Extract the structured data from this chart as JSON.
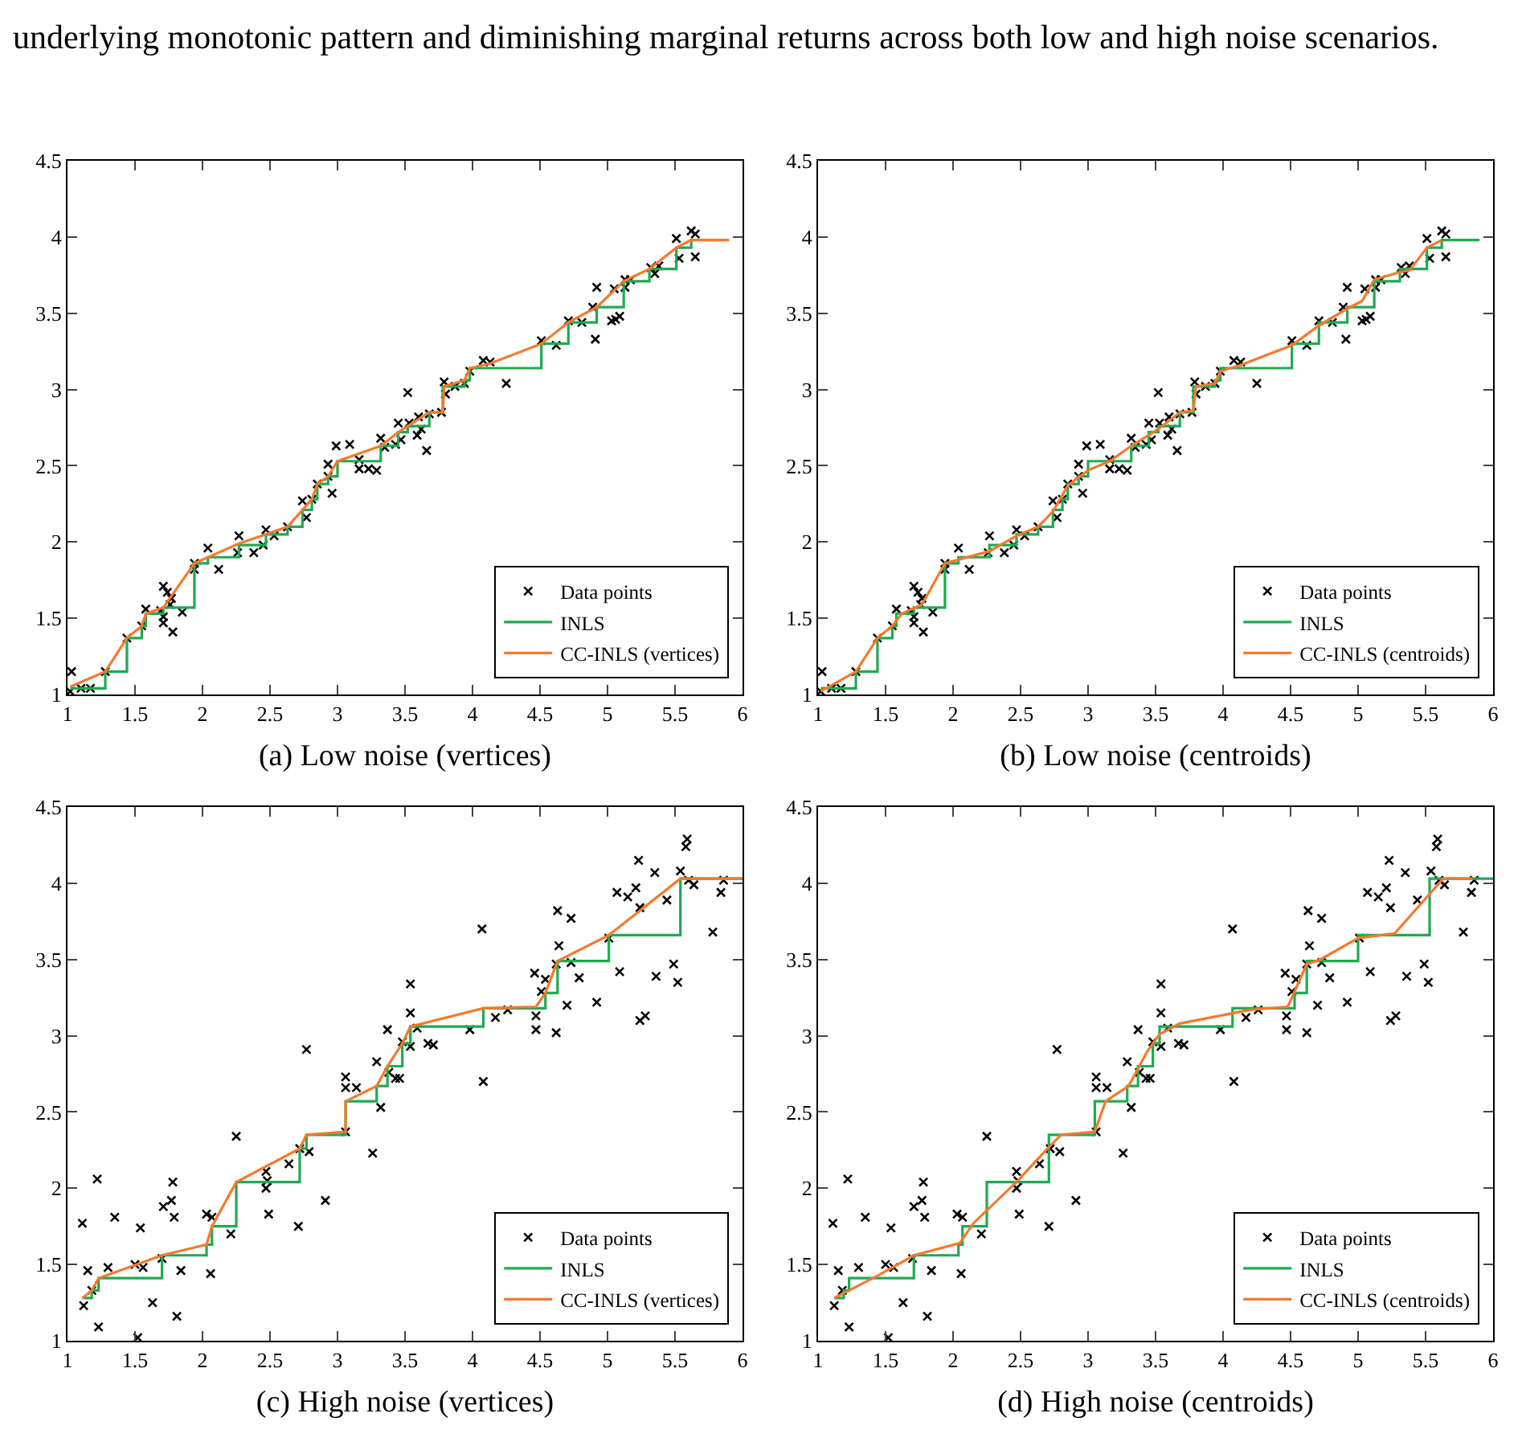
{
  "chart_data": [
    {
      "type": "scatter",
      "title": "(a) Low noise (vertices)",
      "annotations": [
        "underlying monotonic pattern and diminishing marginal returns across both low and high noise scenarios."
      ],
      "xlim": [
        1,
        6
      ],
      "ylim": [
        1,
        4.5
      ],
      "xticks": [
        1,
        1.5,
        2,
        2.5,
        3,
        3.5,
        4,
        4.5,
        5,
        5.5,
        6
      ],
      "yticks": [
        1,
        1.5,
        2,
        2.5,
        3,
        3.5,
        4,
        4.5
      ],
      "grid": false,
      "legend": "bottom right",
      "series": [
        {
          "type": "scatter",
          "name": "Data points",
          "color": "#000000",
          "marker": "cross",
          "x": [
            1.02,
            1.03,
            1.1,
            1.17,
            1.28,
            1.44,
            1.55,
            1.58,
            1.69,
            1.71,
            1.74,
            1.77,
            1.71,
            1.71,
            1.76,
            1.78,
            1.85,
            1.94,
            1.94,
            2.04,
            2.12,
            2.26,
            2.27,
            2.38,
            2.45,
            2.47,
            2.53,
            2.63,
            2.74,
            2.77,
            2.81,
            2.85,
            2.93,
            2.93,
            2.96,
            2.99,
            3.09,
            3.16,
            3.16,
            3.23,
            3.29,
            3.32,
            3.35,
            3.43,
            3.45,
            3.47,
            3.52,
            3.53,
            3.59,
            3.6,
            3.62,
            3.66,
            3.68,
            3.77,
            3.79,
            3.8,
            3.87,
            3.94,
            3.98,
            4.08,
            4.13,
            4.25,
            4.51,
            4.62,
            4.71,
            4.81,
            4.89,
            4.91,
            4.92,
            5.03,
            5.06,
            5.09,
            5.05,
            5.13,
            5.13,
            5.17,
            5.32,
            5.35,
            5.38,
            5.51,
            5.53,
            5.62,
            5.65,
            5.65
          ],
          "values": [
            1.02,
            1.15,
            1.04,
            1.04,
            1.15,
            1.37,
            1.45,
            1.56,
            1.55,
            1.71,
            1.67,
            1.63,
            1.51,
            1.47,
            1.59,
            1.41,
            1.54,
            1.86,
            1.82,
            1.96,
            1.82,
            1.93,
            2.04,
            1.93,
            1.98,
            2.08,
            2.04,
            2.1,
            2.27,
            2.16,
            2.28,
            2.38,
            2.43,
            2.51,
            2.32,
            2.63,
            2.64,
            2.54,
            2.48,
            2.48,
            2.47,
            2.68,
            2.62,
            2.64,
            2.78,
            2.67,
            2.98,
            2.78,
            2.7,
            2.82,
            2.74,
            2.6,
            2.84,
            2.85,
            3.05,
            2.97,
            3.02,
            3.04,
            3.12,
            3.19,
            3.18,
            3.04,
            3.32,
            3.29,
            3.45,
            3.44,
            3.54,
            3.33,
            3.67,
            3.45,
            3.46,
            3.48,
            3.66,
            3.67,
            3.72,
            3.72,
            3.8,
            3.76,
            3.81,
            3.99,
            3.86,
            4.04,
            4.02,
            3.87
          ]
        },
        {
          "type": "step",
          "name": "INLS",
          "color": "#1faa52",
          "x": [
            1.02,
            1.28,
            1.44,
            1.55,
            1.58,
            1.71,
            1.94,
            2.04,
            2.27,
            2.47,
            2.63,
            2.74,
            2.81,
            2.85,
            2.93,
            3.0,
            3.32,
            3.45,
            3.52,
            3.68,
            3.78,
            3.94,
            3.98,
            4.51,
            4.71,
            4.92,
            5.12,
            5.31,
            5.51,
            5.62,
            5.9
          ],
          "values": [
            1.04,
            1.15,
            1.37,
            1.45,
            1.53,
            1.57,
            1.86,
            1.9,
            1.98,
            2.05,
            2.1,
            2.21,
            2.28,
            2.38,
            2.43,
            2.53,
            2.63,
            2.72,
            2.76,
            2.85,
            3.02,
            3.06,
            3.14,
            3.3,
            3.44,
            3.54,
            3.71,
            3.79,
            3.93,
            3.98,
            3.98
          ]
        },
        {
          "type": "line",
          "name": "CC-INLS (vertices)",
          "color": "#f5792e",
          "x": [
            1.02,
            1.28,
            1.44,
            1.55,
            1.58,
            1.71,
            1.94,
            2.27,
            2.47,
            2.63,
            2.74,
            2.81,
            2.85,
            2.93,
            3.0,
            3.32,
            3.45,
            3.52,
            3.68,
            3.78,
            3.79,
            3.94,
            3.98,
            4.13,
            4.51,
            4.71,
            4.92,
            5.12,
            5.31,
            5.51,
            5.62,
            5.9
          ],
          "values": [
            1.05,
            1.15,
            1.37,
            1.45,
            1.53,
            1.57,
            1.86,
            1.99,
            2.05,
            2.1,
            2.21,
            2.28,
            2.38,
            2.43,
            2.53,
            2.63,
            2.72,
            2.76,
            2.85,
            2.85,
            3.02,
            3.06,
            3.14,
            3.17,
            3.3,
            3.44,
            3.54,
            3.71,
            3.79,
            3.93,
            3.98,
            3.98
          ]
        }
      ]
    },
    {
      "type": "scatter",
      "title": "(b) Low noise (centroids)",
      "xlim": [
        1,
        6
      ],
      "ylim": [
        1,
        4.5
      ],
      "xticks": [
        1,
        1.5,
        2,
        2.5,
        3,
        3.5,
        4,
        4.5,
        5,
        5.5,
        6
      ],
      "yticks": [
        1,
        1.5,
        2,
        2.5,
        3,
        3.5,
        4,
        4.5
      ],
      "grid": false,
      "legend": "bottom right",
      "series": [
        {
          "type": "scatter",
          "name": "Data points",
          "color": "#000000",
          "marker": "cross",
          "x": [
            1.02,
            1.03,
            1.1,
            1.17,
            1.28,
            1.44,
            1.55,
            1.58,
            1.69,
            1.71,
            1.74,
            1.77,
            1.71,
            1.71,
            1.76,
            1.78,
            1.85,
            1.94,
            1.94,
            2.04,
            2.12,
            2.26,
            2.27,
            2.38,
            2.45,
            2.47,
            2.53,
            2.63,
            2.74,
            2.77,
            2.81,
            2.85,
            2.93,
            2.93,
            2.96,
            2.99,
            3.09,
            3.16,
            3.16,
            3.23,
            3.29,
            3.32,
            3.35,
            3.43,
            3.45,
            3.47,
            3.52,
            3.53,
            3.59,
            3.6,
            3.62,
            3.66,
            3.68,
            3.77,
            3.79,
            3.8,
            3.87,
            3.94,
            3.98,
            4.08,
            4.13,
            4.25,
            4.51,
            4.62,
            4.71,
            4.81,
            4.89,
            4.91,
            4.92,
            5.03,
            5.06,
            5.09,
            5.05,
            5.13,
            5.13,
            5.17,
            5.32,
            5.35,
            5.38,
            5.51,
            5.53,
            5.62,
            5.65,
            5.65
          ],
          "values": [
            1.02,
            1.15,
            1.04,
            1.04,
            1.15,
            1.37,
            1.45,
            1.56,
            1.55,
            1.71,
            1.67,
            1.63,
            1.51,
            1.47,
            1.59,
            1.41,
            1.54,
            1.86,
            1.82,
            1.96,
            1.82,
            1.93,
            2.04,
            1.93,
            1.98,
            2.08,
            2.04,
            2.1,
            2.27,
            2.16,
            2.28,
            2.38,
            2.43,
            2.51,
            2.32,
            2.63,
            2.64,
            2.54,
            2.48,
            2.48,
            2.47,
            2.68,
            2.62,
            2.64,
            2.78,
            2.67,
            2.98,
            2.78,
            2.7,
            2.82,
            2.74,
            2.6,
            2.84,
            2.85,
            3.05,
            2.97,
            3.02,
            3.04,
            3.12,
            3.19,
            3.18,
            3.04,
            3.32,
            3.29,
            3.45,
            3.44,
            3.54,
            3.33,
            3.67,
            3.45,
            3.46,
            3.48,
            3.66,
            3.67,
            3.72,
            3.72,
            3.8,
            3.76,
            3.81,
            3.99,
            3.86,
            4.04,
            4.02,
            3.87
          ]
        },
        {
          "type": "step",
          "name": "INLS",
          "color": "#1faa52",
          "x": [
            1.02,
            1.28,
            1.44,
            1.55,
            1.58,
            1.71,
            1.94,
            2.04,
            2.27,
            2.47,
            2.63,
            2.74,
            2.81,
            2.85,
            2.93,
            3.0,
            3.32,
            3.45,
            3.52,
            3.68,
            3.78,
            3.94,
            3.98,
            4.51,
            4.71,
            4.92,
            5.12,
            5.31,
            5.51,
            5.62,
            5.9
          ],
          "values": [
            1.04,
            1.15,
            1.37,
            1.45,
            1.53,
            1.57,
            1.86,
            1.9,
            1.98,
            2.05,
            2.1,
            2.21,
            2.28,
            2.38,
            2.43,
            2.53,
            2.63,
            2.72,
            2.76,
            2.85,
            3.02,
            3.06,
            3.14,
            3.3,
            3.44,
            3.54,
            3.71,
            3.79,
            3.93,
            3.98,
            3.98
          ]
        },
        {
          "type": "line",
          "name": "CC-INLS (centroids)",
          "color": "#f5792e",
          "x": [
            1.02,
            1.28,
            1.44,
            1.55,
            1.62,
            1.77,
            1.94,
            2.27,
            2.47,
            2.63,
            2.74,
            2.85,
            3.0,
            3.16,
            3.32,
            3.52,
            3.68,
            3.78,
            3.8,
            3.94,
            3.98,
            4.13,
            4.51,
            4.71,
            4.92,
            5.03,
            5.12,
            5.31,
            5.38,
            5.51,
            5.62
          ],
          "values": [
            1.02,
            1.15,
            1.37,
            1.45,
            1.53,
            1.59,
            1.86,
            1.94,
            2.04,
            2.1,
            2.2,
            2.37,
            2.47,
            2.53,
            2.63,
            2.74,
            2.85,
            2.86,
            3.02,
            3.04,
            3.12,
            3.16,
            3.29,
            3.42,
            3.53,
            3.58,
            3.72,
            3.77,
            3.78,
            3.93,
            3.98
          ]
        }
      ]
    },
    {
      "type": "scatter",
      "title": "(c) High noise (vertices)",
      "xlim": [
        1,
        6
      ],
      "ylim": [
        1,
        4.5
      ],
      "xticks": [
        1,
        1.5,
        2,
        2.5,
        3,
        3.5,
        4,
        4.5,
        5,
        5.5,
        6
      ],
      "yticks": [
        1,
        1.5,
        2,
        2.5,
        3,
        3.5,
        4,
        4.5
      ],
      "grid": false,
      "legend": "bottom right",
      "series": [
        {
          "type": "scatter",
          "name": "Data points",
          "color": "#000000",
          "marker": "cross",
          "x": [
            1.11,
            1.15,
            1.12,
            1.18,
            1.22,
            1.23,
            1.3,
            1.35,
            1.5,
            1.52,
            1.54,
            1.56,
            1.63,
            1.71,
            1.7,
            1.77,
            1.78,
            1.79,
            1.81,
            1.84,
            2.03,
            2.07,
            2.06,
            2.21,
            2.25,
            2.47,
            2.47,
            2.48,
            2.49,
            2.64,
            2.71,
            2.72,
            2.77,
            2.79,
            2.91,
            3.06,
            3.06,
            3.06,
            3.14,
            3.26,
            3.29,
            3.32,
            3.37,
            3.38,
            3.43,
            3.46,
            3.48,
            3.54,
            3.54,
            3.54,
            3.59,
            3.67,
            3.71,
            3.98,
            4.07,
            4.08,
            4.17,
            4.26,
            4.46,
            4.47,
            4.47,
            4.51,
            4.54,
            4.62,
            4.62,
            4.63,
            4.64,
            4.7,
            4.73,
            4.73,
            4.79,
            4.92,
            5.01,
            5.07,
            5.09,
            5.15,
            5.21,
            5.23,
            5.24,
            5.24,
            5.28,
            5.35,
            5.36,
            5.44,
            5.49,
            5.52,
            5.54,
            5.58,
            5.59,
            5.6,
            5.64,
            5.78,
            5.84,
            5.86
          ],
          "values": [
            1.77,
            1.46,
            1.23,
            1.33,
            2.06,
            1.09,
            1.48,
            1.81,
            1.5,
            1.02,
            1.74,
            1.48,
            1.25,
            1.88,
            1.54,
            1.92,
            2.04,
            1.81,
            1.16,
            1.46,
            1.83,
            1.81,
            1.44,
            1.7,
            2.34,
            2.0,
            2.11,
            2.05,
            1.83,
            2.16,
            1.75,
            2.26,
            2.91,
            2.24,
            1.92,
            2.37,
            2.73,
            2.66,
            2.66,
            2.23,
            2.83,
            2.53,
            3.04,
            2.76,
            2.72,
            2.72,
            2.96,
            3.15,
            2.93,
            3.34,
            3.05,
            2.95,
            2.94,
            3.04,
            3.7,
            2.7,
            3.12,
            3.17,
            3.41,
            3.13,
            3.04,
            3.29,
            3.37,
            3.47,
            3.02,
            3.82,
            3.59,
            3.2,
            3.77,
            3.48,
            3.38,
            3.22,
            3.64,
            3.94,
            3.42,
            3.91,
            3.97,
            4.15,
            3.84,
            3.1,
            3.13,
            4.07,
            3.39,
            3.89,
            3.47,
            3.35,
            4.08,
            4.24,
            4.29,
            4.02,
            3.99,
            3.68,
            3.94,
            4.02
          ]
        },
        {
          "type": "step",
          "name": "INLS",
          "color": "#1faa52",
          "x": [
            1.11,
            1.18,
            1.23,
            1.7,
            2.03,
            2.07,
            2.25,
            2.72,
            2.77,
            3.06,
            3.29,
            3.37,
            3.48,
            3.54,
            4.08,
            4.54,
            4.63,
            5.01,
            5.54,
            6.0
          ],
          "values": [
            1.28,
            1.33,
            1.41,
            1.56,
            1.63,
            1.75,
            2.04,
            2.26,
            2.35,
            2.57,
            2.67,
            2.8,
            2.95,
            3.06,
            3.18,
            3.28,
            3.49,
            3.66,
            4.03,
            4.03
          ]
        },
        {
          "type": "line",
          "name": "CC-INLS (vertices)",
          "color": "#f5792e",
          "x": [
            1.11,
            1.18,
            1.23,
            1.7,
            2.03,
            2.07,
            2.25,
            2.72,
            2.77,
            3.06,
            3.06,
            3.29,
            3.37,
            3.48,
            3.54,
            4.08,
            4.47,
            4.54,
            4.63,
            5.01,
            5.54,
            6.0
          ],
          "values": [
            1.28,
            1.33,
            1.41,
            1.56,
            1.63,
            1.75,
            2.04,
            2.26,
            2.35,
            2.37,
            2.57,
            2.67,
            2.8,
            2.95,
            3.06,
            3.18,
            3.19,
            3.28,
            3.49,
            3.66,
            4.03,
            4.03
          ]
        }
      ]
    },
    {
      "type": "scatter",
      "title": "(d) High noise (centroids)",
      "xlim": [
        1,
        6
      ],
      "ylim": [
        1,
        4.5
      ],
      "xticks": [
        1,
        1.5,
        2,
        2.5,
        3,
        3.5,
        4,
        4.5,
        5,
        5.5,
        6
      ],
      "yticks": [
        1,
        1.5,
        2,
        2.5,
        3,
        3.5,
        4,
        4.5
      ],
      "grid": false,
      "legend": "bottom right",
      "series": [
        {
          "type": "scatter",
          "name": "Data points",
          "color": "#000000",
          "marker": "cross",
          "x": [
            1.11,
            1.15,
            1.12,
            1.18,
            1.22,
            1.23,
            1.3,
            1.35,
            1.5,
            1.52,
            1.54,
            1.56,
            1.63,
            1.71,
            1.7,
            1.77,
            1.78,
            1.79,
            1.81,
            1.84,
            2.03,
            2.07,
            2.06,
            2.21,
            2.25,
            2.47,
            2.47,
            2.48,
            2.49,
            2.64,
            2.71,
            2.72,
            2.77,
            2.79,
            2.91,
            3.06,
            3.06,
            3.06,
            3.14,
            3.26,
            3.29,
            3.32,
            3.37,
            3.38,
            3.43,
            3.46,
            3.48,
            3.54,
            3.54,
            3.54,
            3.59,
            3.67,
            3.71,
            3.98,
            4.07,
            4.08,
            4.17,
            4.26,
            4.46,
            4.47,
            4.47,
            4.51,
            4.54,
            4.62,
            4.62,
            4.63,
            4.64,
            4.7,
            4.73,
            4.73,
            4.79,
            4.92,
            5.01,
            5.07,
            5.09,
            5.15,
            5.21,
            5.23,
            5.24,
            5.24,
            5.28,
            5.35,
            5.36,
            5.44,
            5.49,
            5.52,
            5.54,
            5.58,
            5.59,
            5.6,
            5.64,
            5.78,
            5.84,
            5.86
          ],
          "values": [
            1.77,
            1.46,
            1.23,
            1.33,
            2.06,
            1.09,
            1.48,
            1.81,
            1.5,
            1.02,
            1.74,
            1.48,
            1.25,
            1.88,
            1.54,
            1.92,
            2.04,
            1.81,
            1.16,
            1.46,
            1.83,
            1.81,
            1.44,
            1.7,
            2.34,
            2.0,
            2.11,
            2.05,
            1.83,
            2.16,
            1.75,
            2.26,
            2.91,
            2.24,
            1.92,
            2.37,
            2.73,
            2.66,
            2.66,
            2.23,
            2.83,
            2.53,
            3.04,
            2.76,
            2.72,
            2.72,
            2.96,
            3.15,
            2.93,
            3.34,
            3.05,
            2.95,
            2.94,
            3.04,
            3.7,
            2.7,
            3.12,
            3.17,
            3.41,
            3.13,
            3.04,
            3.29,
            3.37,
            3.47,
            3.02,
            3.82,
            3.59,
            3.2,
            3.77,
            3.48,
            3.38,
            3.22,
            3.64,
            3.94,
            3.42,
            3.91,
            3.97,
            4.15,
            3.84,
            3.1,
            3.13,
            4.07,
            3.39,
            3.89,
            3.47,
            3.35,
            4.08,
            4.24,
            4.29,
            4.02,
            3.99,
            3.68,
            3.94,
            4.02
          ]
        },
        {
          "type": "step",
          "name": "INLS",
          "color": "#1faa52",
          "x": [
            1.12,
            1.19,
            1.23,
            1.71,
            2.04,
            2.07,
            2.25,
            2.71,
            3.05,
            3.29,
            3.37,
            3.48,
            3.53,
            4.07,
            4.53,
            4.62,
            5.0,
            5.53,
            6.0
          ],
          "values": [
            1.28,
            1.33,
            1.41,
            1.56,
            1.63,
            1.75,
            2.04,
            2.35,
            2.57,
            2.67,
            2.8,
            2.95,
            3.06,
            3.18,
            3.28,
            3.49,
            3.66,
            4.03,
            4.03
          ]
        },
        {
          "type": "line",
          "name": "CC-INLS (centroids)",
          "color": "#f5792e",
          "x": [
            1.12,
            1.45,
            1.71,
            2.05,
            2.15,
            2.48,
            2.7,
            2.8,
            3.05,
            3.13,
            3.3,
            3.44,
            3.53,
            3.68,
            4.2,
            4.48,
            4.62,
            4.72,
            5.0,
            5.27,
            5.63,
            5.85
          ],
          "values": [
            1.28,
            1.43,
            1.56,
            1.64,
            1.77,
            2.05,
            2.26,
            2.35,
            2.37,
            2.57,
            2.67,
            2.9,
            3.01,
            3.08,
            3.17,
            3.19,
            3.47,
            3.5,
            3.64,
            3.67,
            4.03,
            4.03
          ]
        }
      ]
    }
  ]
}
